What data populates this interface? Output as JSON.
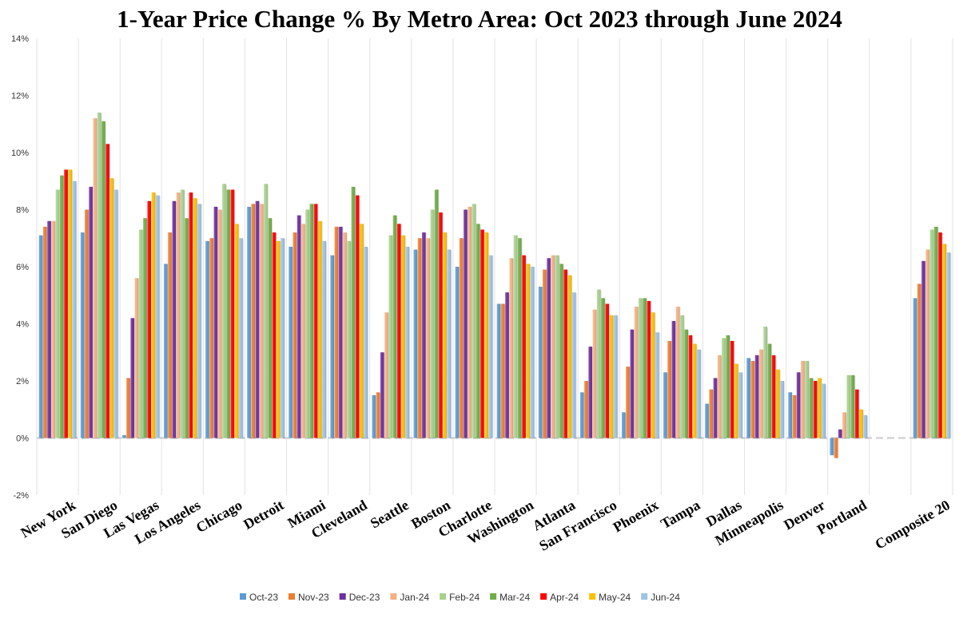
{
  "chart_data": {
    "type": "bar",
    "title": "1-Year Price Change % By Metro Area: Oct 2023 through June 2024",
    "xlabel": "",
    "ylabel": "",
    "ylim": [
      -2,
      14
    ],
    "yticks": [
      -2,
      0,
      2,
      4,
      6,
      8,
      10,
      12,
      14
    ],
    "ytick_suffix": "%",
    "grid": "vertical separators",
    "legend_position": "bottom",
    "categories": [
      "New York",
      "San Diego",
      "Las Vegas",
      "Los Angeles",
      "Chicago",
      "Detroit",
      "Miami",
      "Cleveland",
      "Seattle",
      "Boston",
      "Charlotte",
      "Washington",
      "Atlanta",
      "San Francisco",
      "Phoenix",
      "Tampa",
      "Dallas",
      "Minneapolis",
      "Denver",
      "Portland",
      "",
      "Composite 20"
    ],
    "series": [
      {
        "name": "Oct-23",
        "color": "#5B9BD5",
        "values": [
          7.1,
          7.2,
          0.1,
          6.1,
          6.9,
          8.1,
          6.7,
          6.4,
          1.5,
          6.6,
          6.0,
          4.7,
          5.3,
          1.6,
          0.9,
          2.3,
          1.2,
          2.8,
          1.6,
          -0.6,
          null,
          4.9
        ]
      },
      {
        "name": "Nov-23",
        "color": "#ED7D31",
        "values": [
          7.4,
          8.0,
          2.1,
          7.2,
          7.0,
          8.2,
          7.2,
          7.4,
          1.6,
          7.0,
          7.0,
          4.7,
          5.9,
          2.0,
          2.5,
          3.4,
          1.7,
          2.7,
          1.5,
          -0.7,
          null,
          5.4
        ]
      },
      {
        "name": "Dec-23",
        "color": "#7030A0",
        "values": [
          7.6,
          8.8,
          4.2,
          8.3,
          8.1,
          8.3,
          7.8,
          7.4,
          3.0,
          7.2,
          8.0,
          5.1,
          6.3,
          3.2,
          3.8,
          4.1,
          2.1,
          2.9,
          2.3,
          0.3,
          null,
          6.2
        ]
      },
      {
        "name": "Jan-24",
        "color": "#F4B183",
        "values": [
          7.6,
          11.2,
          5.6,
          8.6,
          8.0,
          8.2,
          7.5,
          7.2,
          4.4,
          7.0,
          8.1,
          6.3,
          6.4,
          4.5,
          4.6,
          4.6,
          2.9,
          3.1,
          2.7,
          0.9,
          null,
          6.6
        ]
      },
      {
        "name": "Feb-24",
        "color": "#A9D18E",
        "values": [
          8.7,
          11.4,
          7.3,
          8.7,
          8.9,
          8.9,
          8.0,
          6.9,
          7.1,
          8.0,
          8.2,
          7.1,
          6.4,
          5.2,
          4.9,
          4.3,
          3.5,
          3.9,
          2.7,
          2.2,
          null,
          7.3
        ]
      },
      {
        "name": "Mar-24",
        "color": "#70AD47",
        "values": [
          9.2,
          11.1,
          7.7,
          7.7,
          8.7,
          7.7,
          8.2,
          8.8,
          7.8,
          8.7,
          7.5,
          7.0,
          6.1,
          4.9,
          4.9,
          3.8,
          3.6,
          3.3,
          2.1,
          2.2,
          null,
          7.4
        ]
      },
      {
        "name": "Apr-24",
        "color": "#FF0000",
        "values": [
          9.4,
          10.3,
          8.3,
          8.6,
          8.7,
          7.2,
          8.2,
          8.5,
          7.5,
          7.9,
          7.3,
          6.4,
          5.9,
          4.7,
          4.8,
          3.6,
          3.4,
          2.9,
          2.0,
          1.7,
          null,
          7.2
        ]
      },
      {
        "name": "May-24",
        "color": "#FFC000",
        "values": [
          9.4,
          9.1,
          8.6,
          8.4,
          7.5,
          6.9,
          7.6,
          7.5,
          7.1,
          7.2,
          7.2,
          6.1,
          5.7,
          4.3,
          4.4,
          3.3,
          2.6,
          2.4,
          2.1,
          1.0,
          null,
          6.8
        ]
      },
      {
        "name": "Jun-24",
        "color": "#9DC3E6",
        "values": [
          9.0,
          8.7,
          8.5,
          8.2,
          7.0,
          7.0,
          6.9,
          6.7,
          6.7,
          6.6,
          6.4,
          6.0,
          5.1,
          4.3,
          3.7,
          3.1,
          2.3,
          2.0,
          1.9,
          0.8,
          null,
          6.5
        ]
      }
    ]
  }
}
